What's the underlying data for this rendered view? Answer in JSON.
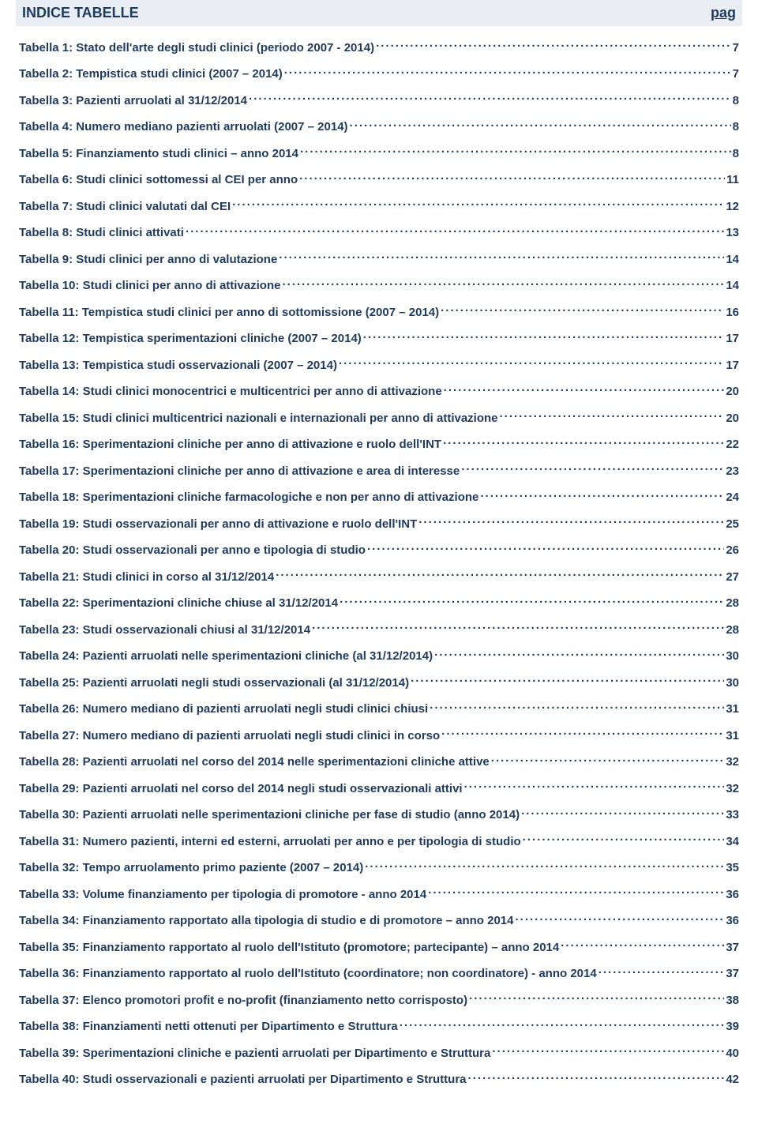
{
  "colors": {
    "text": "#1f3a5f",
    "headerBg": "#e8eef4",
    "pageBg": "#ffffff"
  },
  "header": {
    "title": "INDICE TABELLE",
    "pageLabel": "pag"
  },
  "toc": [
    {
      "label": "Tabella 1: Stato dell'arte degli studi clinici (periodo 2007 - 2014)",
      "page": "7"
    },
    {
      "label": "Tabella 2: Tempistica studi clinici (2007 – 2014)",
      "page": "7"
    },
    {
      "label": "Tabella 3: Pazienti arruolati al 31/12/2014",
      "page": "8"
    },
    {
      "label": "Tabella 4: Numero mediano pazienti arruolati (2007 – 2014)",
      "page": "8"
    },
    {
      "label": "Tabella 5: Finanziamento studi clinici – anno 2014",
      "page": "8"
    },
    {
      "label": "Tabella 6: Studi clinici sottomessi al CEI per anno",
      "page": "11"
    },
    {
      "label": "Tabella 7: Studi clinici valutati dal CEI",
      "page": "12"
    },
    {
      "label": "Tabella 8: Studi clinici attivati",
      "page": "13"
    },
    {
      "label": "Tabella 9: Studi clinici per anno di valutazione",
      "page": "14"
    },
    {
      "label": "Tabella 10: Studi clinici per anno di attivazione",
      "page": "14"
    },
    {
      "label": "Tabella 11: Tempistica studi clinici per anno di sottomissione (2007 – 2014)",
      "page": "16"
    },
    {
      "label": "Tabella 12: Tempistica sperimentazioni cliniche (2007 – 2014)",
      "page": "17"
    },
    {
      "label": "Tabella 13: Tempistica studi osservazionali (2007 – 2014)",
      "page": "17"
    },
    {
      "label": "Tabella 14: Studi clinici monocentrici e multicentrici per anno di attivazione",
      "page": "20"
    },
    {
      "label": "Tabella 15: Studi clinici multicentrici nazionali e internazionali per anno di attivazione",
      "page": "20"
    },
    {
      "label": "Tabella 16: Sperimentazioni cliniche per anno di attivazione e ruolo dell'INT",
      "page": "22"
    },
    {
      "label": "Tabella 17: Sperimentazioni cliniche per anno di attivazione e area di interesse",
      "page": "23"
    },
    {
      "label": "Tabella 18: Sperimentazioni cliniche farmacologiche e non per anno di attivazione",
      "page": "24"
    },
    {
      "label": "Tabella 19: Studi osservazionali per anno di attivazione e ruolo dell'INT",
      "page": "25"
    },
    {
      "label": "Tabella 20: Studi osservazionali per anno e tipologia di studio",
      "page": "26"
    },
    {
      "label": "Tabella 21: Studi clinici in corso al 31/12/2014",
      "page": "27"
    },
    {
      "label": "Tabella 22: Sperimentazioni cliniche chiuse al 31/12/2014",
      "page": "28"
    },
    {
      "label": "Tabella 23: Studi osservazionali chiusi al 31/12/2014",
      "page": "28"
    },
    {
      "label": "Tabella 24: Pazienti arruolati nelle sperimentazioni cliniche (al 31/12/2014)",
      "page": "30"
    },
    {
      "label": "Tabella 25: Pazienti arruolati negli studi osservazionali (al 31/12/2014)",
      "page": "30"
    },
    {
      "label": "Tabella 26: Numero mediano di pazienti arruolati negli studi clinici chiusi",
      "page": "31"
    },
    {
      "label": "Tabella 27: Numero mediano di pazienti arruolati negli studi clinici in corso",
      "page": "31"
    },
    {
      "label": "Tabella 28: Pazienti arruolati nel corso del 2014 nelle sperimentazioni cliniche attive",
      "page": "32"
    },
    {
      "label": "Tabella 29: Pazienti arruolati nel corso del 2014 negli studi osservazionali attivi",
      "page": "32"
    },
    {
      "label": "Tabella 30: Pazienti arruolati nelle sperimentazioni cliniche per fase di studio (anno 2014)",
      "page": "33"
    },
    {
      "label": "Tabella 31: Numero pazienti, interni ed esterni, arruolati per anno e per tipologia di studio",
      "page": "34"
    },
    {
      "label": "Tabella 32: Tempo arruolamento primo paziente (2007 – 2014)",
      "page": "35"
    },
    {
      "label": "Tabella 33: Volume finanziamento per tipologia di promotore - anno 2014",
      "page": "36"
    },
    {
      "label": "Tabella 34: Finanziamento rapportato alla tipologia di studio e di promotore – anno 2014",
      "page": "36"
    },
    {
      "label": "Tabella 35: Finanziamento rapportato al ruolo dell'Istituto (promotore; partecipante) – anno 2014",
      "page": "37"
    },
    {
      "label": "Tabella 36: Finanziamento rapportato al ruolo dell'Istituto (coordinatore; non coordinatore) - anno 2014",
      "page": "37"
    },
    {
      "label": "Tabella 37: Elenco promotori profit e no-profit (finanziamento netto corrisposto)",
      "page": "38"
    },
    {
      "label": "Tabella 38: Finanziamenti netti ottenuti per Dipartimento e Struttura",
      "page": "39"
    },
    {
      "label": "Tabella 39: Sperimentazioni cliniche e pazienti arruolati per Dipartimento e Struttura",
      "page": "40"
    },
    {
      "label": "Tabella 40: Studi osservazionali e pazienti arruolati per Dipartimento e Struttura",
      "page": "42"
    }
  ]
}
